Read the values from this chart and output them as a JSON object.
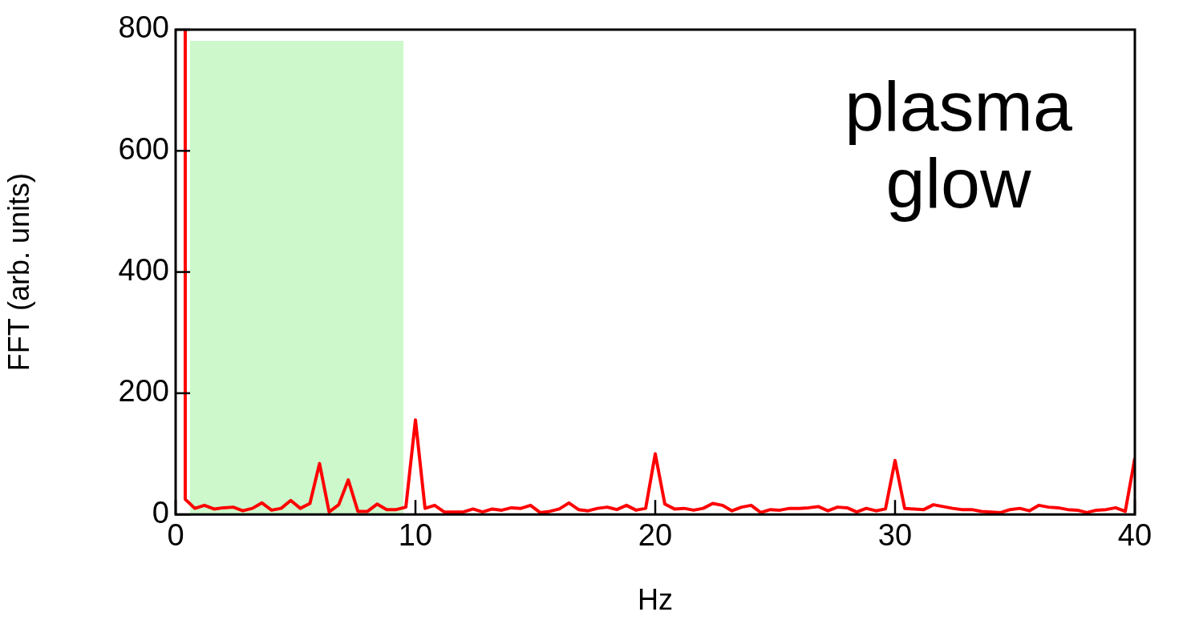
{
  "chart_data": {
    "type": "line",
    "xlabel": "Hz",
    "ylabel": "FFT (arb. units)",
    "annotations": [
      "plasma glow"
    ],
    "series": [
      {
        "color": "#ff0000",
        "x": [
          0.4,
          0.4,
          0.8,
          1.2,
          1.6,
          2.0,
          2.4,
          2.8,
          3.2,
          3.6,
          4.0,
          4.4,
          4.8,
          5.2,
          5.6,
          6.0,
          6.4,
          6.8,
          7.2,
          7.6,
          8.0,
          8.4,
          8.8,
          9.2,
          9.6,
          10.0,
          10.4,
          10.8,
          11.2,
          11.6,
          12.0,
          12.4,
          12.8,
          13.2,
          13.6,
          14.0,
          14.4,
          14.8,
          15.2,
          15.6,
          16.0,
          16.4,
          16.8,
          17.2,
          17.6,
          18.0,
          18.4,
          18.8,
          19.2,
          19.6,
          20.0,
          20.4,
          20.8,
          21.2,
          21.6,
          22.0,
          22.4,
          22.8,
          23.2,
          23.6,
          24.0,
          24.4,
          24.8,
          25.2,
          25.6,
          26.0,
          26.4,
          26.8,
          27.2,
          27.6,
          28.0,
          28.4,
          28.8,
          29.2,
          29.6,
          30.0,
          30.4,
          30.8,
          31.2,
          31.6,
          32.0,
          32.4,
          32.8,
          33.2,
          33.6,
          34.0,
          34.4,
          34.8,
          35.2,
          35.6,
          36.0,
          36.4,
          36.8,
          37.2,
          37.6,
          38.0,
          38.4,
          38.8,
          39.2,
          39.6,
          40.0
        ],
        "values": [
          800,
          25,
          10,
          15,
          9,
          11,
          12,
          6,
          10,
          19,
          7,
          10,
          23,
          10,
          18,
          84,
          4,
          16,
          57,
          5,
          5,
          17,
          8,
          8,
          12,
          156,
          10,
          15,
          4,
          4,
          4,
          9,
          4,
          9,
          7,
          11,
          10,
          15,
          3,
          5,
          9,
          19,
          8,
          6,
          10,
          12,
          8,
          15,
          7,
          10,
          100,
          17,
          9,
          10,
          7,
          10,
          18,
          15,
          6,
          12,
          15,
          3,
          8,
          7,
          10,
          10,
          11,
          13,
          6,
          12,
          11,
          4,
          10,
          6,
          9,
          89,
          10,
          9,
          8,
          16,
          13,
          10,
          8,
          8,
          5,
          4,
          3,
          8,
          10,
          6,
          15,
          12,
          11,
          8,
          7,
          3,
          7,
          8,
          11,
          5,
          93
        ]
      }
    ],
    "xlim": [
      0,
      40
    ],
    "xticks": [
      0,
      10,
      20,
      30,
      40
    ],
    "ylim": [
      0,
      800
    ],
    "yticks": [
      0,
      200,
      400,
      600,
      800
    ],
    "bands": [
      {
        "axis": "x",
        "from": 0.6,
        "to": 9.5,
        "color": "#ccf8cc"
      }
    ],
    "grid": false,
    "legend": false,
    "marker": "none",
    "line_style": "solid"
  }
}
